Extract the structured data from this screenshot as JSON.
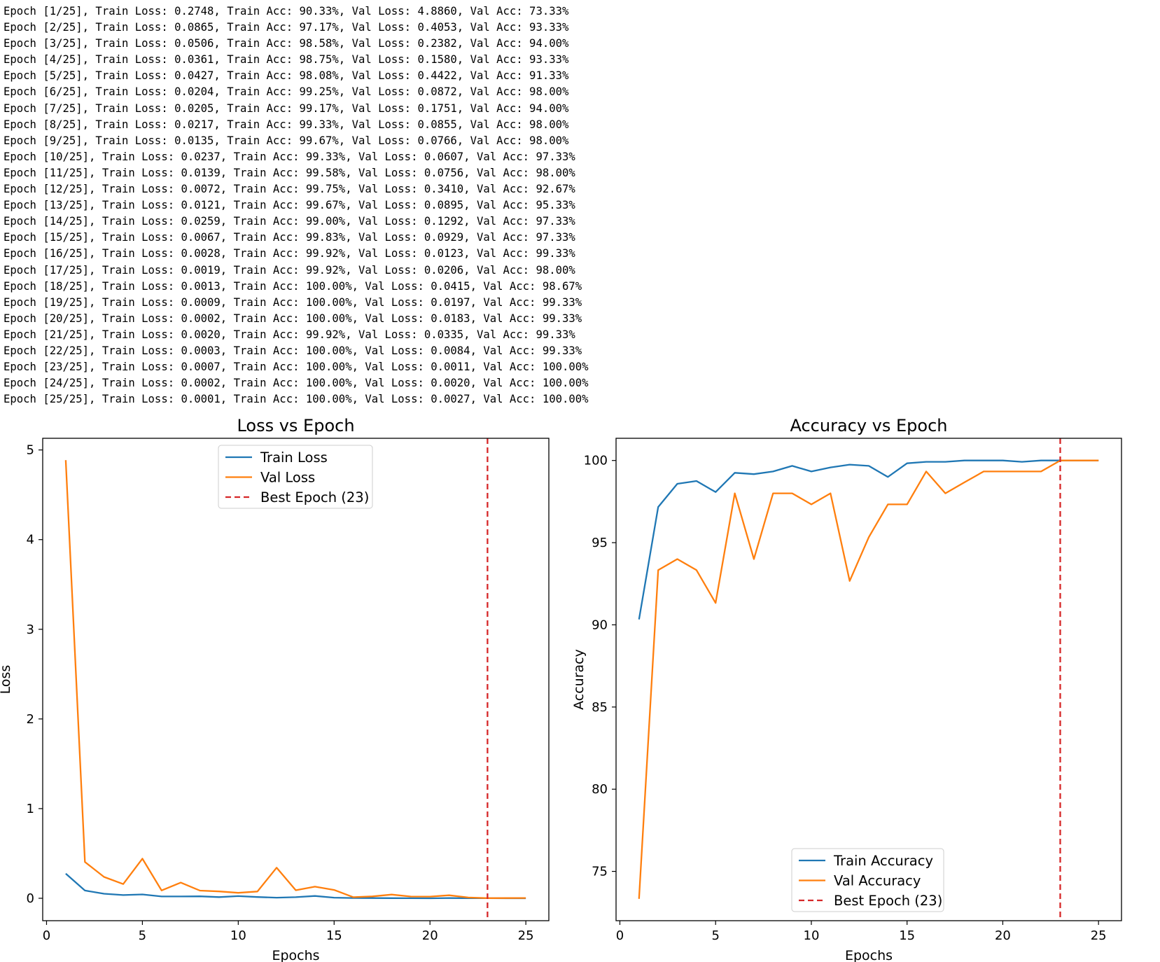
{
  "log": {
    "lines": [
      "Epoch [1/25], Train Loss: 0.2748, Train Acc: 90.33%, Val Loss: 4.8860, Val Acc: 73.33%",
      "Epoch [2/25], Train Loss: 0.0865, Train Acc: 97.17%, Val Loss: 0.4053, Val Acc: 93.33%",
      "Epoch [3/25], Train Loss: 0.0506, Train Acc: 98.58%, Val Loss: 0.2382, Val Acc: 94.00%",
      "Epoch [4/25], Train Loss: 0.0361, Train Acc: 98.75%, Val Loss: 0.1580, Val Acc: 93.33%",
      "Epoch [5/25], Train Loss: 0.0427, Train Acc: 98.08%, Val Loss: 0.4422, Val Acc: 91.33%",
      "Epoch [6/25], Train Loss: 0.0204, Train Acc: 99.25%, Val Loss: 0.0872, Val Acc: 98.00%",
      "Epoch [7/25], Train Loss: 0.0205, Train Acc: 99.17%, Val Loss: 0.1751, Val Acc: 94.00%",
      "Epoch [8/25], Train Loss: 0.0217, Train Acc: 99.33%, Val Loss: 0.0855, Val Acc: 98.00%",
      "Epoch [9/25], Train Loss: 0.0135, Train Acc: 99.67%, Val Loss: 0.0766, Val Acc: 98.00%",
      "Epoch [10/25], Train Loss: 0.0237, Train Acc: 99.33%, Val Loss: 0.0607, Val Acc: 97.33%",
      "Epoch [11/25], Train Loss: 0.0139, Train Acc: 99.58%, Val Loss: 0.0756, Val Acc: 98.00%",
      "Epoch [12/25], Train Loss: 0.0072, Train Acc: 99.75%, Val Loss: 0.3410, Val Acc: 92.67%",
      "Epoch [13/25], Train Loss: 0.0121, Train Acc: 99.67%, Val Loss: 0.0895, Val Acc: 95.33%",
      "Epoch [14/25], Train Loss: 0.0259, Train Acc: 99.00%, Val Loss: 0.1292, Val Acc: 97.33%",
      "Epoch [15/25], Train Loss: 0.0067, Train Acc: 99.83%, Val Loss: 0.0929, Val Acc: 97.33%",
      "Epoch [16/25], Train Loss: 0.0028, Train Acc: 99.92%, Val Loss: 0.0123, Val Acc: 99.33%",
      "Epoch [17/25], Train Loss: 0.0019, Train Acc: 99.92%, Val Loss: 0.0206, Val Acc: 98.00%",
      "Epoch [18/25], Train Loss: 0.0013, Train Acc: 100.00%, Val Loss: 0.0415, Val Acc: 98.67%",
      "Epoch [19/25], Train Loss: 0.0009, Train Acc: 100.00%, Val Loss: 0.0197, Val Acc: 99.33%",
      "Epoch [20/25], Train Loss: 0.0002, Train Acc: 100.00%, Val Loss: 0.0183, Val Acc: 99.33%",
      "Epoch [21/25], Train Loss: 0.0020, Train Acc: 99.92%, Val Loss: 0.0335, Val Acc: 99.33%",
      "Epoch [22/25], Train Loss: 0.0003, Train Acc: 100.00%, Val Loss: 0.0084, Val Acc: 99.33%",
      "Epoch [23/25], Train Loss: 0.0007, Train Acc: 100.00%, Val Loss: 0.0011, Val Acc: 100.00%",
      "Epoch [24/25], Train Loss: 0.0002, Train Acc: 100.00%, Val Loss: 0.0020, Val Acc: 100.00%",
      "Epoch [25/25], Train Loss: 0.0001, Train Acc: 100.00%, Val Loss: 0.0027, Val Acc: 100.00%"
    ]
  },
  "colors": {
    "train": "#1f77b4",
    "val": "#ff7f0e",
    "best": "#d62728",
    "axis": "#000000"
  },
  "chart_data": [
    {
      "type": "line",
      "id": "loss",
      "title": "Loss vs Epoch",
      "xlabel": "Epochs",
      "ylabel": "Loss",
      "xlim": [
        -0.2,
        26.2
      ],
      "ylim": [
        -0.25,
        5.13
      ],
      "xticks": [
        0,
        5,
        10,
        15,
        20,
        25
      ],
      "yticks": [
        0,
        1,
        2,
        3,
        4,
        5
      ],
      "grid": false,
      "legend_location": "upper-center",
      "x": [
        1,
        2,
        3,
        4,
        5,
        6,
        7,
        8,
        9,
        10,
        11,
        12,
        13,
        14,
        15,
        16,
        17,
        18,
        19,
        20,
        21,
        22,
        23,
        24,
        25
      ],
      "series": [
        {
          "name": "Train Loss",
          "color_key": "train",
          "values": [
            0.2748,
            0.0865,
            0.0506,
            0.0361,
            0.0427,
            0.0204,
            0.0205,
            0.0217,
            0.0135,
            0.0237,
            0.0139,
            0.0072,
            0.0121,
            0.0259,
            0.0067,
            0.0028,
            0.0019,
            0.0013,
            0.0009,
            0.0002,
            0.002,
            0.0003,
            0.0007,
            0.0002,
            0.0001
          ]
        },
        {
          "name": "Val Loss",
          "color_key": "val",
          "values": [
            4.886,
            0.4053,
            0.2382,
            0.158,
            0.4422,
            0.0872,
            0.1751,
            0.0855,
            0.0766,
            0.0607,
            0.0756,
            0.341,
            0.0895,
            0.1292,
            0.0929,
            0.0123,
            0.0206,
            0.0415,
            0.0197,
            0.0183,
            0.0335,
            0.0084,
            0.0011,
            0.002,
            0.0027
          ]
        }
      ],
      "best_epoch": {
        "label": "Best Epoch (23)",
        "x": 23
      }
    },
    {
      "type": "line",
      "id": "acc",
      "title": "Accuracy vs Epoch",
      "xlabel": "Epochs",
      "ylabel": "Accuracy",
      "xlim": [
        -0.2,
        26.2
      ],
      "ylim": [
        72.0,
        101.35
      ],
      "xticks": [
        0,
        5,
        10,
        15,
        20,
        25
      ],
      "yticks": [
        75,
        80,
        85,
        90,
        95,
        100
      ],
      "grid": false,
      "legend_location": "lower-center",
      "x": [
        1,
        2,
        3,
        4,
        5,
        6,
        7,
        8,
        9,
        10,
        11,
        12,
        13,
        14,
        15,
        16,
        17,
        18,
        19,
        20,
        21,
        22,
        23,
        24,
        25
      ],
      "series": [
        {
          "name": "Train Accuracy",
          "color_key": "train",
          "values": [
            90.33,
            97.17,
            98.58,
            98.75,
            98.08,
            99.25,
            99.17,
            99.33,
            99.67,
            99.33,
            99.58,
            99.75,
            99.67,
            99.0,
            99.83,
            99.92,
            99.92,
            100.0,
            100.0,
            100.0,
            99.92,
            100.0,
            100.0,
            100.0,
            100.0
          ]
        },
        {
          "name": "Val Accuracy",
          "color_key": "val",
          "values": [
            73.33,
            93.33,
            94.0,
            93.33,
            91.33,
            98.0,
            94.0,
            98.0,
            98.0,
            97.33,
            98.0,
            92.67,
            95.33,
            97.33,
            97.33,
            99.33,
            98.0,
            98.67,
            99.33,
            99.33,
            99.33,
            99.33,
            100.0,
            100.0,
            100.0
          ]
        }
      ],
      "best_epoch": {
        "label": "Best Epoch (23)",
        "x": 23
      }
    }
  ]
}
